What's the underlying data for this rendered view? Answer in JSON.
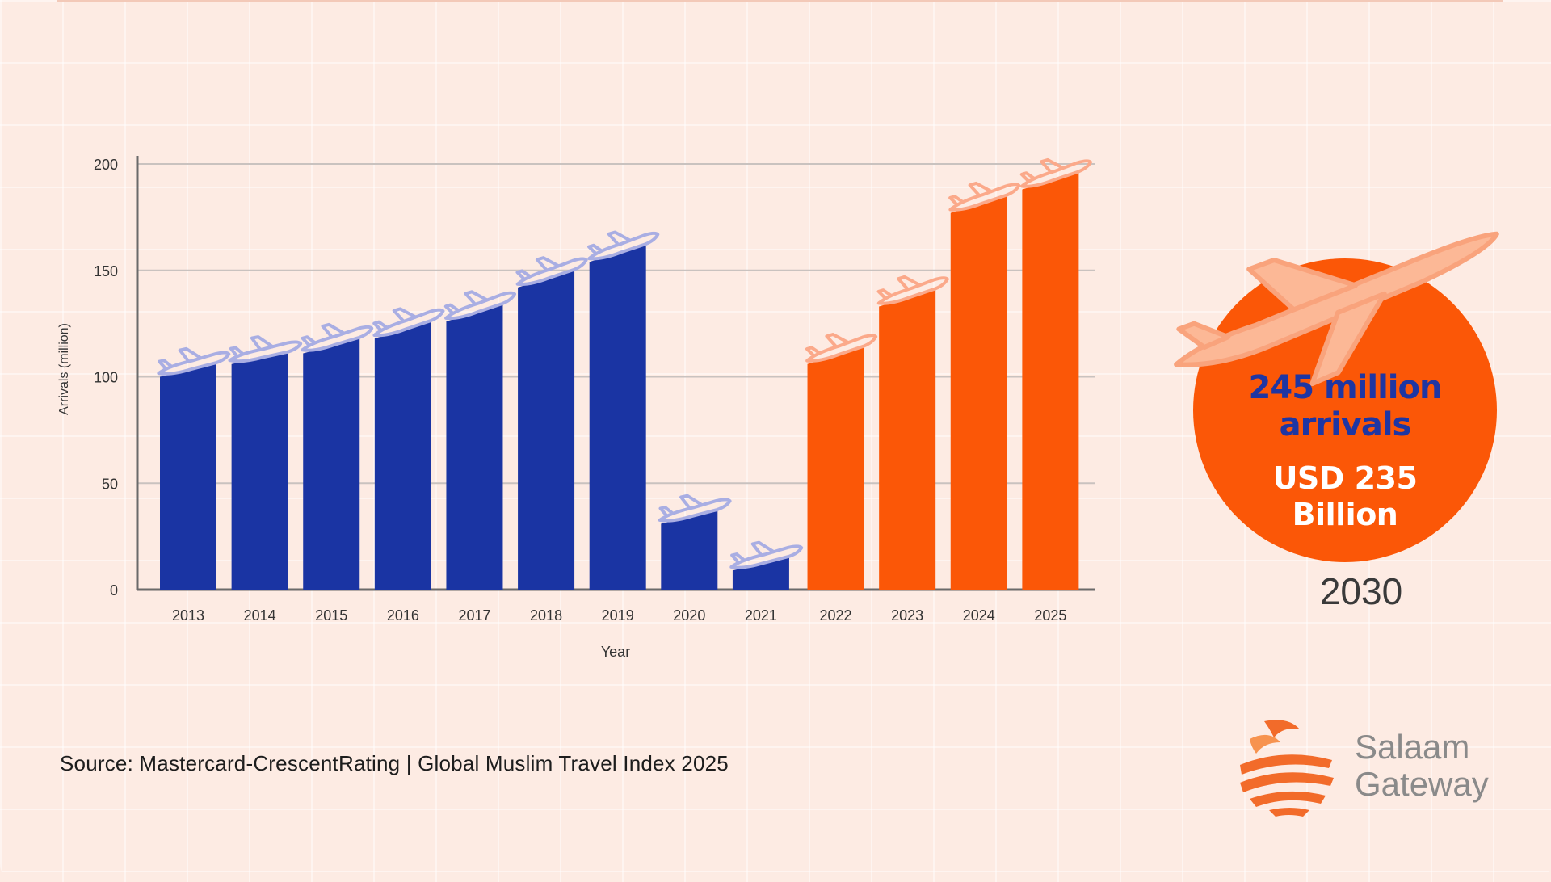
{
  "chart_data": {
    "type": "bar",
    "title": "",
    "xlabel": "Year",
    "ylabel": "Arrivals (million)",
    "ylim": [
      0,
      200
    ],
    "yticks": [
      0,
      50,
      100,
      150,
      200
    ],
    "categories": [
      "2013",
      "2014",
      "2015",
      "2016",
      "2017",
      "2018",
      "2019",
      "2020",
      "2021",
      "2022",
      "2023",
      "2024",
      "2025"
    ],
    "values": [
      106,
      111,
      118,
      126,
      134,
      150,
      162,
      37,
      15,
      114,
      141,
      185,
      196
    ],
    "bar_colors": [
      "#1a34a3",
      "#1a34a3",
      "#1a34a3",
      "#1a34a3",
      "#1a34a3",
      "#1a34a3",
      "#1a34a3",
      "#1a34a3",
      "#1a34a3",
      "#fb5707",
      "#fb5707",
      "#fb5707",
      "#fb5707"
    ],
    "plane_colors": [
      "#a9aee3",
      "#a9aee3",
      "#a9aee3",
      "#a9aee3",
      "#a9aee3",
      "#a9aee3",
      "#a9aee3",
      "#a9aee3",
      "#a9aee3",
      "#fba98a",
      "#fba98a",
      "#fba98a",
      "#fba98a"
    ],
    "grid": true
  },
  "colors": {
    "background": "#fdebe3",
    "historic_bar": "#1a34a3",
    "forecast_bar": "#fb5707",
    "badge_circle": "#fb5707",
    "badge_plane": "#fcb896",
    "logo_orange": "#f26b2a"
  },
  "projection": {
    "arrivals_line1": "245 million",
    "arrivals_line2": "arrivals",
    "usd_line1": "USD 235",
    "usd_line2": "Billion",
    "year": "2030",
    "icon": "airplane-icon"
  },
  "source": "Source: Mastercard-CrescentRating  |  Global Muslim Travel Index 2025",
  "brand": {
    "line1": "Salaam",
    "line2": "Gateway",
    "icon": "salaam-gateway-logo-icon"
  }
}
